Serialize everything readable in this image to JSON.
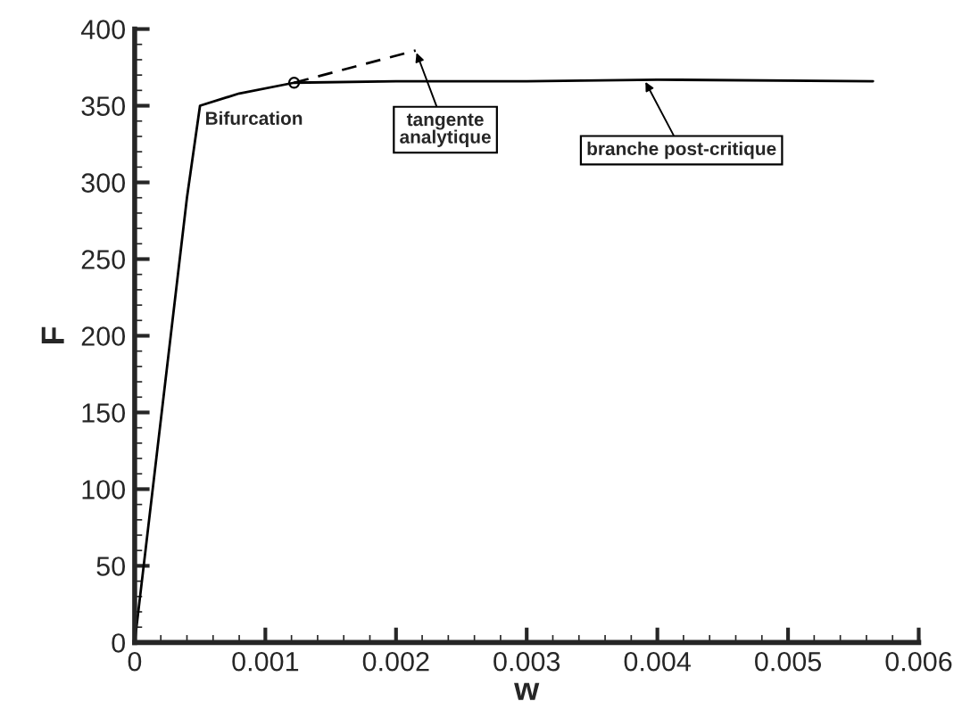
{
  "chart_data": {
    "type": "line",
    "xlabel": "w",
    "ylabel": "F",
    "xlim": [
      0,
      0.006
    ],
    "ylim": [
      0,
      400
    ],
    "xticks": [
      0,
      0.001,
      0.002,
      0.003,
      0.004,
      0.005,
      0.006
    ],
    "yticks": [
      0,
      50,
      100,
      150,
      200,
      250,
      300,
      350,
      400
    ],
    "grid": false,
    "legend": false,
    "series": [
      {
        "color": "#000000",
        "line_style": "solid",
        "x": [
          0,
          0.0004,
          0.0005,
          0.0008,
          0.00122,
          0.002,
          0.003,
          0.004,
          0.00565
        ],
        "values": [
          0,
          290,
          350,
          358,
          365,
          366,
          366,
          367,
          366
        ]
      },
      {
        "type": "line",
        "color": "#000000",
        "line_style": "dashed",
        "x": [
          0.00122,
          0.00215
        ],
        "values": [
          365,
          386
        ]
      },
      {
        "type": "scatter",
        "color": "#000000",
        "marker": "circle",
        "x": [
          0.00122
        ],
        "values": [
          365
        ]
      }
    ],
    "annotations": [
      {
        "text": "Bifurcation",
        "x": 0.00122,
        "y": 365
      },
      {
        "text": "tangente\nanalytique",
        "x": 0.00215,
        "y": 386
      },
      {
        "text": "branche post-critique",
        "x": 0.0039,
        "y": 367
      }
    ]
  }
}
